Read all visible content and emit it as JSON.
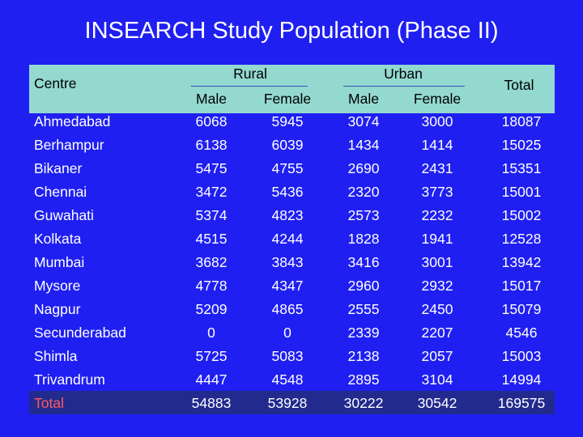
{
  "title": "INSEARCH Study Population (Phase II)",
  "header": {
    "centre": "Centre",
    "rural": "Rural",
    "urban": "Urban",
    "total": "Total",
    "rural_male": "Male",
    "rural_female": "Female",
    "urban_male": "Male",
    "urban_female": "Female"
  },
  "rows": [
    {
      "centre": "Ahmedabad",
      "rural_male": "6068",
      "rural_female": "5945",
      "urban_male": "3074",
      "urban_female": "3000",
      "total": "18087"
    },
    {
      "centre": "Berhampur",
      "rural_male": "6138",
      "rural_female": "6039",
      "urban_male": "1434",
      "urban_female": "1414",
      "total": "15025"
    },
    {
      "centre": "Bikaner",
      "rural_male": "5475",
      "rural_female": "4755",
      "urban_male": "2690",
      "urban_female": "2431",
      "total": "15351"
    },
    {
      "centre": "Chennai",
      "rural_male": "3472",
      "rural_female": "5436",
      "urban_male": "2320",
      "urban_female": "3773",
      "total": "15001"
    },
    {
      "centre": "Guwahati",
      "rural_male": "5374",
      "rural_female": "4823",
      "urban_male": "2573",
      "urban_female": "2232",
      "total": "15002"
    },
    {
      "centre": "Kolkata",
      "rural_male": "4515",
      "rural_female": "4244",
      "urban_male": "1828",
      "urban_female": "1941",
      "total": "12528"
    },
    {
      "centre": "Mumbai",
      "rural_male": "3682",
      "rural_female": "3843",
      "urban_male": "3416",
      "urban_female": "3001",
      "total": "13942"
    },
    {
      "centre": "Mysore",
      "rural_male": "4778",
      "rural_female": "4347",
      "urban_male": "2960",
      "urban_female": "2932",
      "total": "15017"
    },
    {
      "centre": "Nagpur",
      "rural_male": "5209",
      "rural_female": "4865",
      "urban_male": "2555",
      "urban_female": "2450",
      "total": "15079"
    },
    {
      "centre": "Secunderabad",
      "rural_male": "0",
      "rural_female": "0",
      "urban_male": "2339",
      "urban_female": "2207",
      "total": "4546"
    },
    {
      "centre": "Shimla",
      "rural_male": "5725",
      "rural_female": "5083",
      "urban_male": "2138",
      "urban_female": "2057",
      "total": "15003"
    },
    {
      "centre": "Trivandrum",
      "rural_male": "4447",
      "rural_female": "4548",
      "urban_male": "2895",
      "urban_female": "3104",
      "total": "14994"
    },
    {
      "centre": "Total",
      "rural_male": "54883",
      "rural_female": "53928",
      "urban_male": "30222",
      "urban_female": "30542",
      "total": "169575"
    }
  ],
  "colors": {
    "background": "#1f1ff2",
    "header_band": "#93d9d0",
    "total_row": "#222a8e",
    "total_label": "#ff5a5a"
  }
}
